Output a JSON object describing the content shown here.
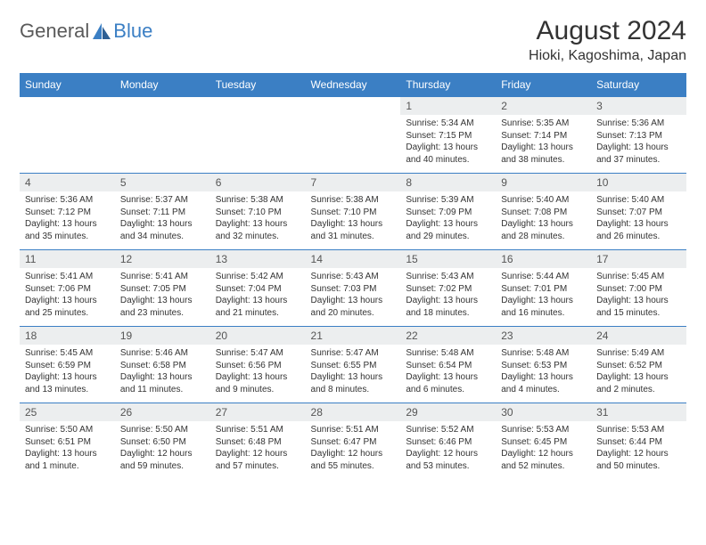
{
  "logo": {
    "part1": "General",
    "part2": "Blue"
  },
  "title": "August 2024",
  "location": "Hioki, Kagoshima, Japan",
  "colors": {
    "header_bg": "#3b7fc4",
    "header_text": "#ffffff",
    "daynum_bg": "#eceeef",
    "border": "#3b7fc4",
    "page_bg": "#ffffff",
    "text": "#333333",
    "logo_gray": "#5a5a5a",
    "logo_blue": "#3b7fc4"
  },
  "typography": {
    "title_fontsize": 30,
    "location_fontsize": 16,
    "weekday_fontsize": 12,
    "daynum_fontsize": 12,
    "body_fontsize": 10
  },
  "weekdays": [
    "Sunday",
    "Monday",
    "Tuesday",
    "Wednesday",
    "Thursday",
    "Friday",
    "Saturday"
  ],
  "weeks": [
    [
      {
        "num": "",
        "sunrise": "",
        "sunset": "",
        "daylight": ""
      },
      {
        "num": "",
        "sunrise": "",
        "sunset": "",
        "daylight": ""
      },
      {
        "num": "",
        "sunrise": "",
        "sunset": "",
        "daylight": ""
      },
      {
        "num": "",
        "sunrise": "",
        "sunset": "",
        "daylight": ""
      },
      {
        "num": "1",
        "sunrise": "Sunrise: 5:34 AM",
        "sunset": "Sunset: 7:15 PM",
        "daylight": "Daylight: 13 hours and 40 minutes."
      },
      {
        "num": "2",
        "sunrise": "Sunrise: 5:35 AM",
        "sunset": "Sunset: 7:14 PM",
        "daylight": "Daylight: 13 hours and 38 minutes."
      },
      {
        "num": "3",
        "sunrise": "Sunrise: 5:36 AM",
        "sunset": "Sunset: 7:13 PM",
        "daylight": "Daylight: 13 hours and 37 minutes."
      }
    ],
    [
      {
        "num": "4",
        "sunrise": "Sunrise: 5:36 AM",
        "sunset": "Sunset: 7:12 PM",
        "daylight": "Daylight: 13 hours and 35 minutes."
      },
      {
        "num": "5",
        "sunrise": "Sunrise: 5:37 AM",
        "sunset": "Sunset: 7:11 PM",
        "daylight": "Daylight: 13 hours and 34 minutes."
      },
      {
        "num": "6",
        "sunrise": "Sunrise: 5:38 AM",
        "sunset": "Sunset: 7:10 PM",
        "daylight": "Daylight: 13 hours and 32 minutes."
      },
      {
        "num": "7",
        "sunrise": "Sunrise: 5:38 AM",
        "sunset": "Sunset: 7:10 PM",
        "daylight": "Daylight: 13 hours and 31 minutes."
      },
      {
        "num": "8",
        "sunrise": "Sunrise: 5:39 AM",
        "sunset": "Sunset: 7:09 PM",
        "daylight": "Daylight: 13 hours and 29 minutes."
      },
      {
        "num": "9",
        "sunrise": "Sunrise: 5:40 AM",
        "sunset": "Sunset: 7:08 PM",
        "daylight": "Daylight: 13 hours and 28 minutes."
      },
      {
        "num": "10",
        "sunrise": "Sunrise: 5:40 AM",
        "sunset": "Sunset: 7:07 PM",
        "daylight": "Daylight: 13 hours and 26 minutes."
      }
    ],
    [
      {
        "num": "11",
        "sunrise": "Sunrise: 5:41 AM",
        "sunset": "Sunset: 7:06 PM",
        "daylight": "Daylight: 13 hours and 25 minutes."
      },
      {
        "num": "12",
        "sunrise": "Sunrise: 5:41 AM",
        "sunset": "Sunset: 7:05 PM",
        "daylight": "Daylight: 13 hours and 23 minutes."
      },
      {
        "num": "13",
        "sunrise": "Sunrise: 5:42 AM",
        "sunset": "Sunset: 7:04 PM",
        "daylight": "Daylight: 13 hours and 21 minutes."
      },
      {
        "num": "14",
        "sunrise": "Sunrise: 5:43 AM",
        "sunset": "Sunset: 7:03 PM",
        "daylight": "Daylight: 13 hours and 20 minutes."
      },
      {
        "num": "15",
        "sunrise": "Sunrise: 5:43 AM",
        "sunset": "Sunset: 7:02 PM",
        "daylight": "Daylight: 13 hours and 18 minutes."
      },
      {
        "num": "16",
        "sunrise": "Sunrise: 5:44 AM",
        "sunset": "Sunset: 7:01 PM",
        "daylight": "Daylight: 13 hours and 16 minutes."
      },
      {
        "num": "17",
        "sunrise": "Sunrise: 5:45 AM",
        "sunset": "Sunset: 7:00 PM",
        "daylight": "Daylight: 13 hours and 15 minutes."
      }
    ],
    [
      {
        "num": "18",
        "sunrise": "Sunrise: 5:45 AM",
        "sunset": "Sunset: 6:59 PM",
        "daylight": "Daylight: 13 hours and 13 minutes."
      },
      {
        "num": "19",
        "sunrise": "Sunrise: 5:46 AM",
        "sunset": "Sunset: 6:58 PM",
        "daylight": "Daylight: 13 hours and 11 minutes."
      },
      {
        "num": "20",
        "sunrise": "Sunrise: 5:47 AM",
        "sunset": "Sunset: 6:56 PM",
        "daylight": "Daylight: 13 hours and 9 minutes."
      },
      {
        "num": "21",
        "sunrise": "Sunrise: 5:47 AM",
        "sunset": "Sunset: 6:55 PM",
        "daylight": "Daylight: 13 hours and 8 minutes."
      },
      {
        "num": "22",
        "sunrise": "Sunrise: 5:48 AM",
        "sunset": "Sunset: 6:54 PM",
        "daylight": "Daylight: 13 hours and 6 minutes."
      },
      {
        "num": "23",
        "sunrise": "Sunrise: 5:48 AM",
        "sunset": "Sunset: 6:53 PM",
        "daylight": "Daylight: 13 hours and 4 minutes."
      },
      {
        "num": "24",
        "sunrise": "Sunrise: 5:49 AM",
        "sunset": "Sunset: 6:52 PM",
        "daylight": "Daylight: 13 hours and 2 minutes."
      }
    ],
    [
      {
        "num": "25",
        "sunrise": "Sunrise: 5:50 AM",
        "sunset": "Sunset: 6:51 PM",
        "daylight": "Daylight: 13 hours and 1 minute."
      },
      {
        "num": "26",
        "sunrise": "Sunrise: 5:50 AM",
        "sunset": "Sunset: 6:50 PM",
        "daylight": "Daylight: 12 hours and 59 minutes."
      },
      {
        "num": "27",
        "sunrise": "Sunrise: 5:51 AM",
        "sunset": "Sunset: 6:48 PM",
        "daylight": "Daylight: 12 hours and 57 minutes."
      },
      {
        "num": "28",
        "sunrise": "Sunrise: 5:51 AM",
        "sunset": "Sunset: 6:47 PM",
        "daylight": "Daylight: 12 hours and 55 minutes."
      },
      {
        "num": "29",
        "sunrise": "Sunrise: 5:52 AM",
        "sunset": "Sunset: 6:46 PM",
        "daylight": "Daylight: 12 hours and 53 minutes."
      },
      {
        "num": "30",
        "sunrise": "Sunrise: 5:53 AM",
        "sunset": "Sunset: 6:45 PM",
        "daylight": "Daylight: 12 hours and 52 minutes."
      },
      {
        "num": "31",
        "sunrise": "Sunrise: 5:53 AM",
        "sunset": "Sunset: 6:44 PM",
        "daylight": "Daylight: 12 hours and 50 minutes."
      }
    ]
  ]
}
